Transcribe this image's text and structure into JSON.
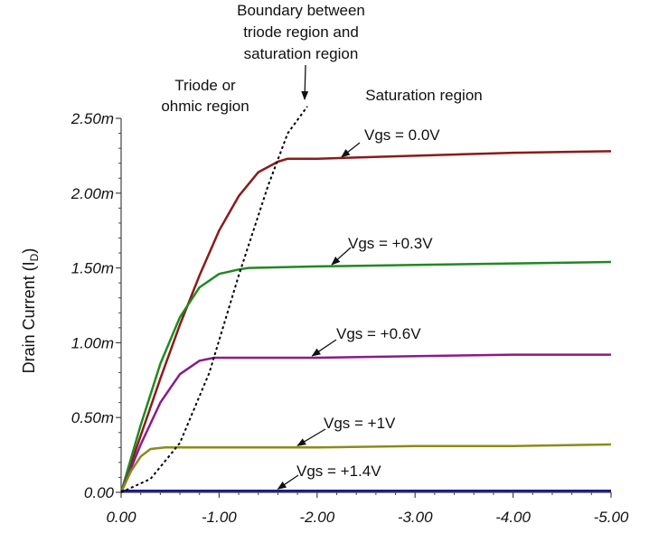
{
  "chart_data": {
    "type": "line",
    "title": "",
    "xlabel": "",
    "ylabel": "Drain Current (I",
    "ylabel_subscript": "D",
    "xlim": [
      0,
      -5
    ],
    "ylim": [
      0,
      2.5
    ],
    "x_ticks": [
      0,
      -1,
      -2,
      -3,
      -4,
      -5
    ],
    "x_tick_labels": [
      "0.00",
      "-1.00",
      "-2.00",
      "-3.00",
      "-4.00",
      "-5.00"
    ],
    "y_ticks": [
      0,
      0.5,
      1.0,
      1.5,
      2.0,
      2.5
    ],
    "y_tick_labels": [
      "0.00",
      "0.50m",
      "1.00m",
      "1.50m",
      "2.00m",
      "2.50m"
    ],
    "grid": false,
    "series": [
      {
        "name": "Vgs = 0.0V",
        "color": "#8b1a1a",
        "x": [
          0,
          -0.2,
          -0.4,
          -0.6,
          -0.8,
          -1.0,
          -1.2,
          -1.4,
          -1.6,
          -1.7,
          -2.0,
          -3.0,
          -4.0,
          -5.0
        ],
        "y": [
          0,
          0.38,
          0.76,
          1.12,
          1.45,
          1.75,
          1.98,
          2.14,
          2.21,
          2.23,
          2.23,
          2.25,
          2.27,
          2.28
        ]
      },
      {
        "name": "Vgs = +0.3V",
        "color": "#1f8a1f",
        "x": [
          0,
          -0.2,
          -0.4,
          -0.6,
          -0.8,
          -1.0,
          -1.2,
          -1.3,
          -2.0,
          -3.0,
          -4.0,
          -5.0
        ],
        "y": [
          0,
          0.45,
          0.86,
          1.17,
          1.37,
          1.46,
          1.49,
          1.5,
          1.51,
          1.52,
          1.53,
          1.54
        ]
      },
      {
        "name": "Vgs = +0.6V",
        "color": "#8b1a8b",
        "x": [
          0,
          -0.2,
          -0.4,
          -0.6,
          -0.8,
          -0.95,
          -2.0,
          -3.0,
          -4.0,
          -5.0
        ],
        "y": [
          0,
          0.32,
          0.6,
          0.79,
          0.88,
          0.9,
          0.9,
          0.91,
          0.92,
          0.92
        ]
      },
      {
        "name": "Vgs = +1V",
        "color": "#8b8b1a",
        "x": [
          0,
          -0.1,
          -0.2,
          -0.3,
          -0.45,
          -2.0,
          -3.0,
          -4.0,
          -5.0
        ],
        "y": [
          0,
          0.14,
          0.24,
          0.29,
          0.3,
          0.3,
          0.31,
          0.31,
          0.32
        ]
      },
      {
        "name": "Vgs = +1.4V",
        "color": "#1a1a8b",
        "x": [
          0,
          -5.0
        ],
        "y": [
          0.01,
          0.01
        ]
      },
      {
        "name": "Boundary between triode region and saturation region",
        "color": "#000000",
        "dashed": true,
        "x": [
          0,
          -0.3,
          -0.6,
          -0.9,
          -1.2,
          -1.5,
          -1.7,
          -1.9
        ],
        "y": [
          0,
          0.09,
          0.33,
          0.8,
          1.45,
          2.05,
          2.4,
          2.58
        ]
      }
    ],
    "annotations": [
      {
        "id": "vgs00",
        "text": "Vgs = 0.0V",
        "arrow_to": [
          -2.25,
          2.23
        ]
      },
      {
        "id": "vgs03",
        "text": "Vgs = +0.3V",
        "arrow_to": [
          -2.15,
          1.51
        ]
      },
      {
        "id": "vgs06",
        "text": "Vgs = +0.6V",
        "arrow_to": [
          -1.95,
          0.9
        ]
      },
      {
        "id": "vgs1",
        "text": "Vgs = +1V",
        "arrow_to": [
          -1.8,
          0.3
        ]
      },
      {
        "id": "vgs14",
        "text": "Vgs = +1.4V",
        "arrow_to": [
          -1.6,
          0.01
        ]
      }
    ],
    "region_labels": {
      "boundary": [
        "Boundary between",
        "triode region and",
        "saturation region"
      ],
      "triode": [
        "Triode or",
        "ohmic region"
      ],
      "saturation": "Saturation region"
    }
  }
}
